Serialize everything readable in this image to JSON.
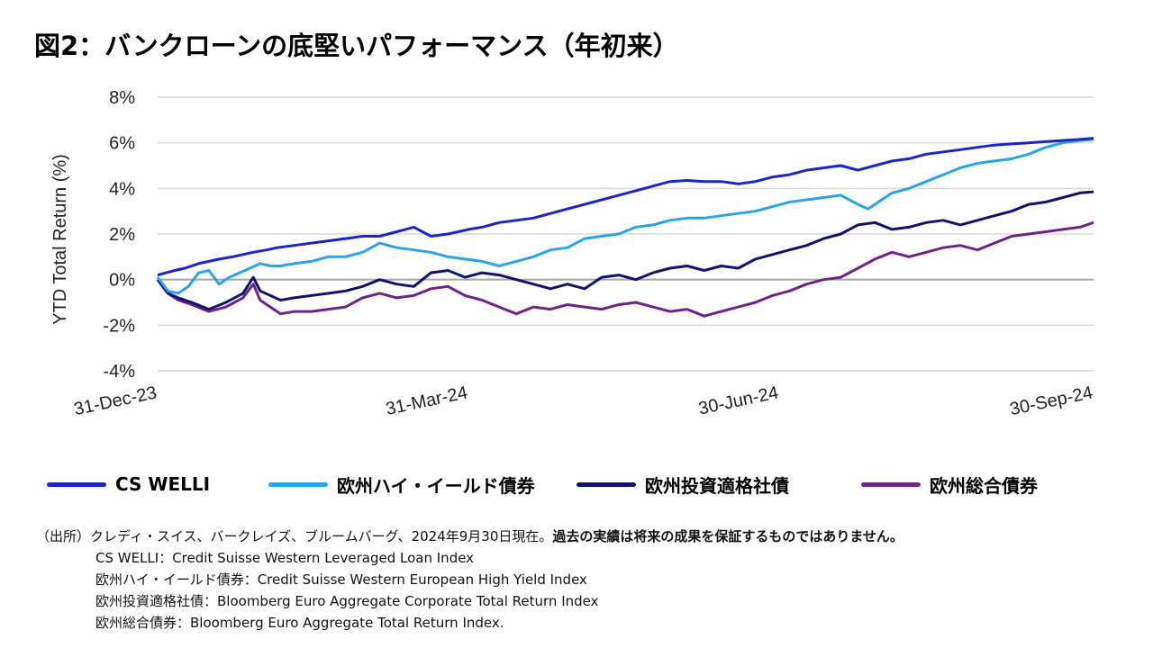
{
  "title": "図2：バンクローンの底堅いパフォーマンス（年初来）",
  "chart_data": {
    "type": "line",
    "ylabel": "YTD Total Return (%)",
    "ylim": [
      -4,
      8
    ],
    "yticks": [
      8,
      6,
      4,
      2,
      0,
      -2,
      -4
    ],
    "ytick_labels": [
      "8%",
      "6%",
      "4%",
      "2%",
      "0%",
      "-2%",
      "-4%"
    ],
    "xlim": [
      0,
      274
    ],
    "xticks": [
      0,
      91,
      182,
      274
    ],
    "xtick_labels": [
      "31-Dec-23",
      "31-Mar-24",
      "30-Jun-24",
      "30-Sep-24"
    ],
    "x_note": "x = days since 31-Dec-23",
    "grid": true,
    "legend_position": "bottom",
    "series": [
      {
        "name": "CS WELLI",
        "color": "#1c23c9",
        "x": [
          0,
          5,
          8,
          12,
          15,
          18,
          22,
          25,
          28,
          32,
          35,
          40,
          45,
          50,
          55,
          60,
          65,
          70,
          75,
          80,
          85,
          88,
          91,
          95,
          100,
          105,
          110,
          115,
          120,
          125,
          130,
          135,
          140,
          145,
          150,
          155,
          160,
          165,
          170,
          175,
          180,
          185,
          190,
          195,
          200,
          205,
          210,
          215,
          220,
          225,
          230,
          235,
          240,
          245,
          250,
          255,
          260,
          265,
          270,
          274
        ],
        "values": [
          0.2,
          0.4,
          0.5,
          0.7,
          0.8,
          0.9,
          1.0,
          1.1,
          1.2,
          1.3,
          1.4,
          1.5,
          1.6,
          1.7,
          1.8,
          1.9,
          1.9,
          2.1,
          2.3,
          1.9,
          2.0,
          2.1,
          2.2,
          2.3,
          2.5,
          2.6,
          2.7,
          2.9,
          3.1,
          3.3,
          3.5,
          3.7,
          3.9,
          4.1,
          4.3,
          4.35,
          4.3,
          4.3,
          4.2,
          4.3,
          4.5,
          4.6,
          4.8,
          4.9,
          5.0,
          4.8,
          5.0,
          5.2,
          5.3,
          5.5,
          5.6,
          5.7,
          5.8,
          5.9,
          5.95,
          6.0,
          6.05,
          6.1,
          6.15,
          6.2
        ]
      },
      {
        "name": "欧州ハイ・イールド債券",
        "color": "#2aa3ea",
        "x": [
          0,
          3,
          6,
          9,
          12,
          15,
          18,
          21,
          24,
          27,
          30,
          33,
          36,
          40,
          45,
          50,
          55,
          60,
          65,
          70,
          75,
          80,
          85,
          90,
          95,
          100,
          105,
          110,
          115,
          120,
          125,
          130,
          135,
          140,
          145,
          150,
          155,
          160,
          165,
          170,
          175,
          180,
          185,
          190,
          195,
          200,
          205,
          208,
          211,
          215,
          220,
          225,
          230,
          235,
          240,
          245,
          250,
          255,
          260,
          265,
          270,
          274
        ],
        "values": [
          0.1,
          -0.5,
          -0.6,
          -0.3,
          0.3,
          0.4,
          -0.2,
          0.1,
          0.3,
          0.5,
          0.7,
          0.6,
          0.6,
          0.7,
          0.8,
          1.0,
          1.0,
          1.2,
          1.6,
          1.4,
          1.3,
          1.2,
          1.0,
          0.9,
          0.8,
          0.6,
          0.8,
          1.0,
          1.3,
          1.4,
          1.8,
          1.9,
          2.0,
          2.3,
          2.4,
          2.6,
          2.7,
          2.7,
          2.8,
          2.9,
          3.0,
          3.2,
          3.4,
          3.5,
          3.6,
          3.7,
          3.3,
          3.1,
          3.4,
          3.8,
          4.0,
          4.3,
          4.6,
          4.9,
          5.1,
          5.2,
          5.3,
          5.5,
          5.8,
          6.0,
          6.1,
          6.15
        ]
      },
      {
        "name": "欧州投資適格社債",
        "color": "#12126e",
        "x": [
          0,
          3,
          6,
          10,
          15,
          20,
          25,
          28,
          30,
          33,
          36,
          40,
          45,
          50,
          55,
          60,
          65,
          70,
          75,
          80,
          85,
          90,
          95,
          100,
          105,
          110,
          115,
          120,
          125,
          130,
          135,
          140,
          145,
          150,
          155,
          160,
          165,
          170,
          175,
          180,
          185,
          190,
          195,
          200,
          205,
          210,
          215,
          220,
          225,
          230,
          235,
          240,
          245,
          250,
          255,
          260,
          265,
          270,
          274
        ],
        "values": [
          0.0,
          -0.6,
          -0.8,
          -1.0,
          -1.3,
          -1.0,
          -0.6,
          0.1,
          -0.5,
          -0.7,
          -0.9,
          -0.8,
          -0.7,
          -0.6,
          -0.5,
          -0.3,
          0.0,
          -0.2,
          -0.3,
          0.3,
          0.4,
          0.1,
          0.3,
          0.2,
          0.0,
          -0.2,
          -0.4,
          -0.2,
          -0.4,
          0.1,
          0.2,
          0.0,
          0.3,
          0.5,
          0.6,
          0.4,
          0.6,
          0.5,
          0.9,
          1.1,
          1.3,
          1.5,
          1.8,
          2.0,
          2.4,
          2.5,
          2.2,
          2.3,
          2.5,
          2.6,
          2.4,
          2.6,
          2.8,
          3.0,
          3.3,
          3.4,
          3.6,
          3.8,
          3.85
        ]
      },
      {
        "name": "欧州総合債券",
        "color": "#6b2585",
        "x": [
          0,
          3,
          6,
          10,
          15,
          20,
          25,
          28,
          30,
          33,
          36,
          40,
          45,
          50,
          55,
          60,
          65,
          70,
          75,
          80,
          85,
          90,
          95,
          100,
          105,
          110,
          115,
          120,
          125,
          130,
          135,
          140,
          145,
          150,
          155,
          160,
          165,
          170,
          175,
          180,
          185,
          190,
          195,
          200,
          205,
          210,
          215,
          220,
          225,
          230,
          235,
          240,
          245,
          250,
          255,
          260,
          265,
          270,
          274
        ],
        "values": [
          0.0,
          -0.6,
          -0.9,
          -1.1,
          -1.4,
          -1.2,
          -0.8,
          -0.2,
          -0.9,
          -1.2,
          -1.5,
          -1.4,
          -1.4,
          -1.3,
          -1.2,
          -0.8,
          -0.6,
          -0.8,
          -0.7,
          -0.4,
          -0.3,
          -0.7,
          -0.9,
          -1.2,
          -1.5,
          -1.2,
          -1.3,
          -1.1,
          -1.2,
          -1.3,
          -1.1,
          -1.0,
          -1.2,
          -1.4,
          -1.3,
          -1.6,
          -1.4,
          -1.2,
          -1.0,
          -0.7,
          -0.5,
          -0.2,
          0.0,
          0.1,
          0.5,
          0.9,
          1.2,
          1.0,
          1.2,
          1.4,
          1.5,
          1.3,
          1.6,
          1.9,
          2.0,
          2.1,
          2.2,
          2.3,
          2.5
        ]
      }
    ]
  },
  "notes": {
    "source_prefix": "（出所）",
    "source_text": "クレディ・スイス、バークレイズ、ブルームバーグ、2024年9月30日現在。",
    "disclaimer": "過去の実績は将来の成果を保証するものではありません。",
    "definitions": [
      "CS WELLI：Credit Suisse Western Leveraged Loan Index",
      "欧州ハイ・イールド債券：Credit Suisse Western European High Yield Index",
      "欧州投資適格社債：Bloomberg Euro Aggregate Corporate Total Return Index",
      "欧州総合債券：Bloomberg Euro Aggregate Total Return Index."
    ]
  }
}
